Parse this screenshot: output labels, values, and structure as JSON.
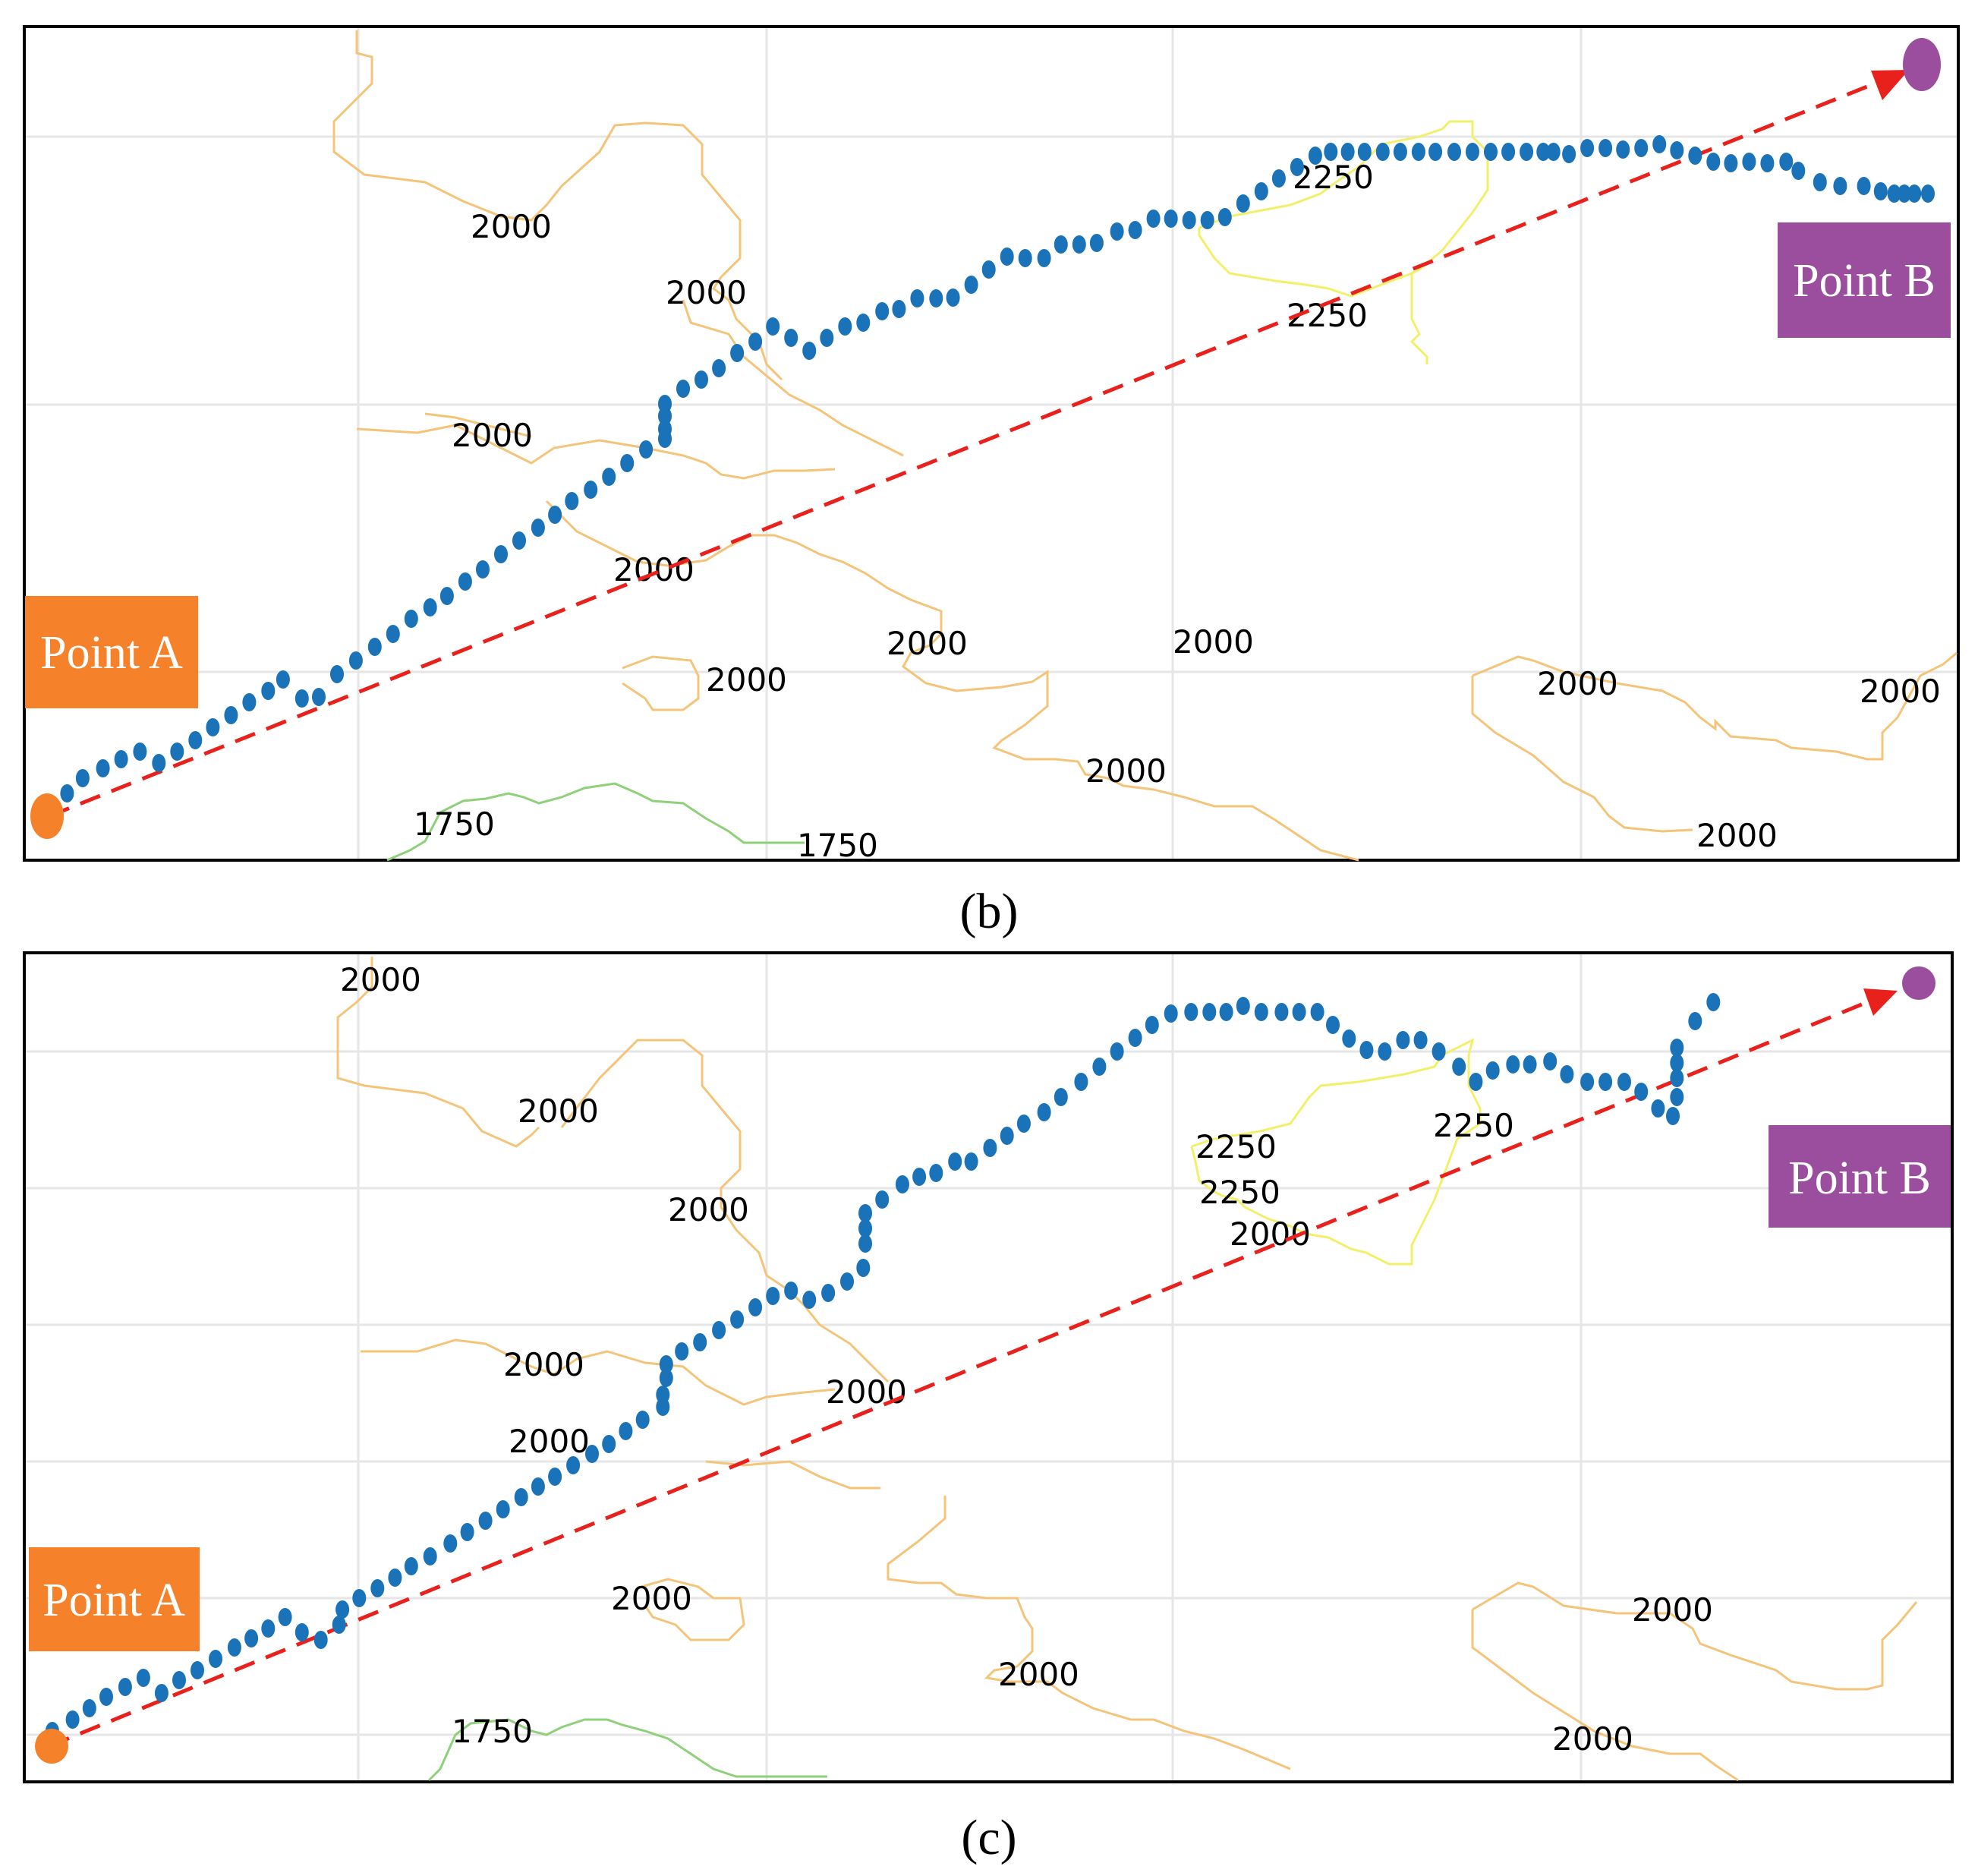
{
  "panels": [
    {
      "caption": "(b)",
      "point_a_label": "Point A",
      "point_b_label": "Point B",
      "contour_labels": [
        "2000",
        "2000",
        "2000",
        "2000",
        "2000",
        "2000",
        "2000",
        "2000",
        "2000",
        "2000",
        "2000",
        "2250",
        "2250",
        "1750",
        "1750"
      ]
    },
    {
      "caption": "(c)",
      "point_a_label": "Point A",
      "point_b_label": "Point B",
      "contour_labels": [
        "2000",
        "2000",
        "2000",
        "2000",
        "2000",
        "2000",
        "2000",
        "2000",
        "2000",
        "2000",
        "2000",
        "2250",
        "2250",
        "2250",
        "1750"
      ]
    }
  ],
  "colors": {
    "path_dots": "#1a73b8",
    "straight_line": "#e8211d",
    "point_a": "#f5822a",
    "point_b": "#9b4d9e",
    "contour_2000": "#f4c47a",
    "contour_2250": "#f2f06a",
    "contour_1750": "#8fd07a",
    "grid": "#e6e6e6"
  }
}
